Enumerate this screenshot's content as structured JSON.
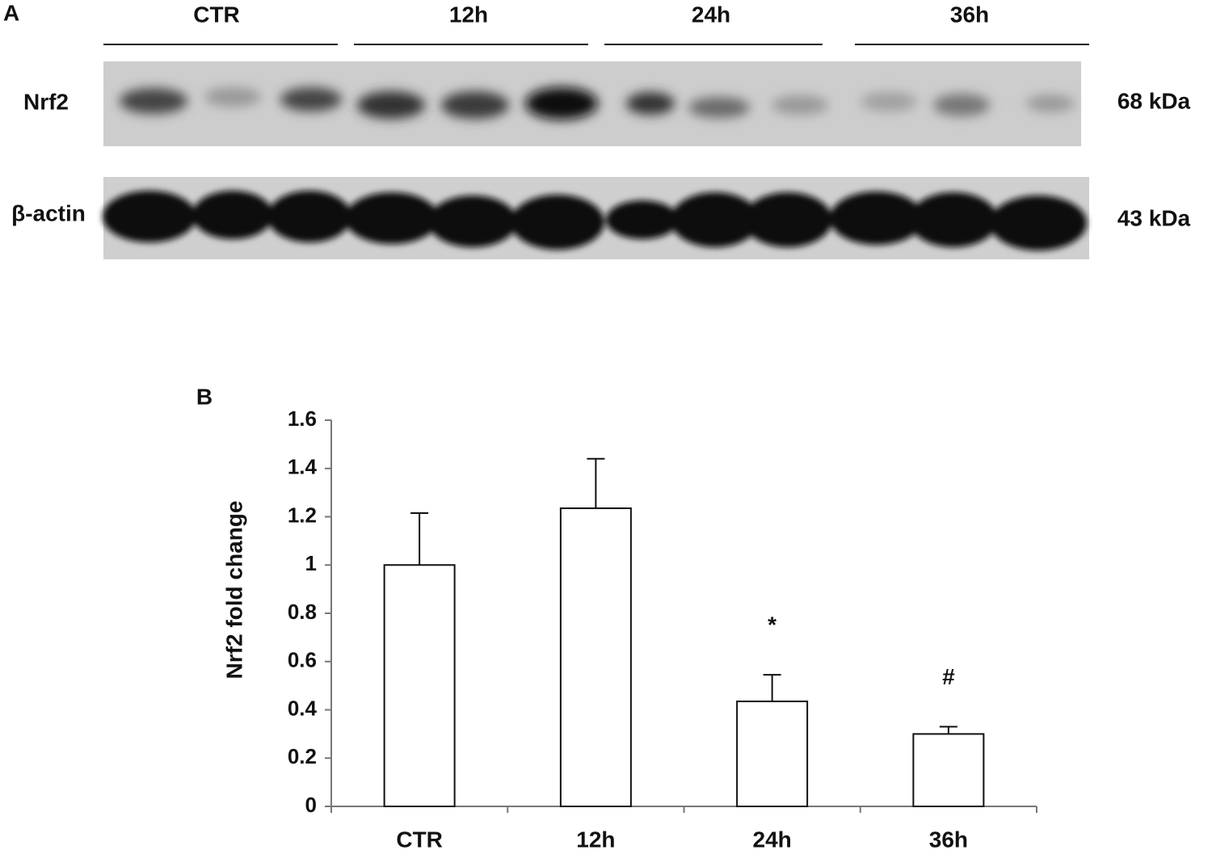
{
  "blot": {
    "panel_label": "A",
    "groups": [
      "CTR",
      "12h",
      "24h",
      "36h"
    ],
    "rows": [
      {
        "label": "Nrf2",
        "size": "68 kDa"
      },
      {
        "label": "β-actin",
        "size": "43 kDa"
      }
    ]
  },
  "chart_data": {
    "type": "bar",
    "panel_label": "B",
    "y_label": "Nrf2 fold change",
    "categories": [
      "CTR",
      "12h",
      "24h",
      "36h"
    ],
    "values": [
      1.0,
      1.235,
      0.435,
      0.3
    ],
    "errors": [
      0.215,
      0.205,
      0.11,
      0.03
    ],
    "color": "#ffffff",
    "ylim": [
      0,
      1.6
    ],
    "yticks": [
      0,
      0.2,
      0.4,
      0.6,
      0.8,
      1,
      1.2,
      1.4,
      1.6
    ],
    "grid": false,
    "annotations": [
      {
        "category": "24h",
        "text": "*"
      },
      {
        "category": "36h",
        "text": "#"
      }
    ]
  }
}
